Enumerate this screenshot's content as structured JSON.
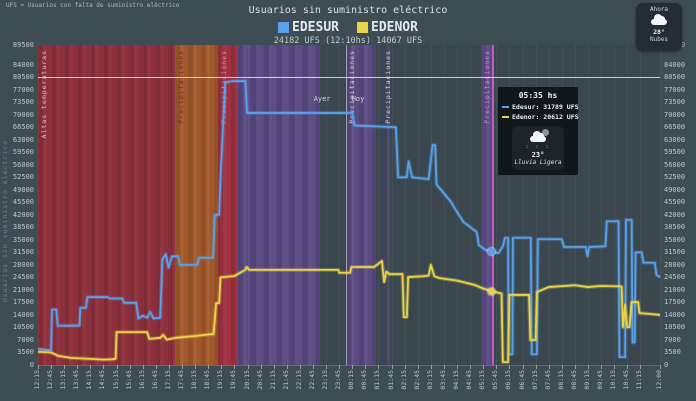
{
  "header": {
    "note": "UFS = Usuarios con falta de suministro eléctrico",
    "title": "Usuarios sin suministro eléctrico",
    "legend": [
      {
        "label": "EDESUR",
        "color": "#5aa0e8"
      },
      {
        "label": "EDENOR",
        "color": "#e8d34a"
      }
    ],
    "subtitle": "24182 UFS (12:10hs) 14067 UFS"
  },
  "now_widget": {
    "label": "Ahora",
    "temp": "28°",
    "condition": "Nubes"
  },
  "tooltip": {
    "time": "05:35 hs",
    "rows": [
      {
        "text": "Edesur: 31789 UFS",
        "color": "#5aa0e8"
      },
      {
        "text": "Edenor: 20612 UFS",
        "color": "#e8d34a"
      }
    ],
    "weather": {
      "temp": "23°",
      "condition": "Lluvia Ligera",
      "rain_glyph": ": : :"
    }
  },
  "axis": {
    "y_title": "Usuarios sin suministro eléctrico",
    "y_ticks": [
      89500,
      84000,
      80500,
      77000,
      73500,
      70000,
      66500,
      63000,
      59500,
      56000,
      52500,
      49000,
      45500,
      42000,
      38500,
      35000,
      31500,
      28000,
      24500,
      21000,
      17500,
      14000,
      10500,
      7000,
      3500,
      0
    ],
    "x_ticks": [
      {
        "m": 0,
        "label": "12:15"
      },
      {
        "m": 30,
        "label": "12:45"
      },
      {
        "m": 60,
        "label": "13:15"
      },
      {
        "m": 90,
        "label": "13:45"
      },
      {
        "m": 120,
        "label": "14:15"
      },
      {
        "m": 150,
        "label": "14:45"
      },
      {
        "m": 180,
        "label": "15:15"
      },
      {
        "m": 210,
        "label": "15:45"
      },
      {
        "m": 240,
        "label": "16:15"
      },
      {
        "m": 270,
        "label": "16:45"
      },
      {
        "m": 300,
        "label": "17:15"
      },
      {
        "m": 330,
        "label": "17:45"
      },
      {
        "m": 360,
        "label": "18:15"
      },
      {
        "m": 390,
        "label": "18:45"
      },
      {
        "m": 420,
        "label": "19:15"
      },
      {
        "m": 450,
        "label": "19:45"
      },
      {
        "m": 480,
        "label": "20:15"
      },
      {
        "m": 510,
        "label": "20:45"
      },
      {
        "m": 540,
        "label": "21:15"
      },
      {
        "m": 570,
        "label": "21:45"
      },
      {
        "m": 600,
        "label": "22:15"
      },
      {
        "m": 630,
        "label": "22:45"
      },
      {
        "m": 660,
        "label": "23:15"
      },
      {
        "m": 690,
        "label": "23:45"
      },
      {
        "m": 720,
        "label": "00:15"
      },
      {
        "m": 750,
        "label": "00:45"
      },
      {
        "m": 780,
        "label": "01:15"
      },
      {
        "m": 810,
        "label": "01:45"
      },
      {
        "m": 840,
        "label": "02:15"
      },
      {
        "m": 870,
        "label": "02:45"
      },
      {
        "m": 900,
        "label": "03:15"
      },
      {
        "m": 930,
        "label": "03:45"
      },
      {
        "m": 960,
        "label": "04:15"
      },
      {
        "m": 990,
        "label": "04:45"
      },
      {
        "m": 1020,
        "label": "05:15"
      },
      {
        "m": 1050,
        "label": "05:45"
      },
      {
        "m": 1080,
        "label": "06:15"
      },
      {
        "m": 1110,
        "label": "06:45"
      },
      {
        "m": 1140,
        "label": "07:15"
      },
      {
        "m": 1170,
        "label": "07:45"
      },
      {
        "m": 1200,
        "label": "08:15"
      },
      {
        "m": 1230,
        "label": "08:45"
      },
      {
        "m": 1260,
        "label": "09:15"
      },
      {
        "m": 1290,
        "label": "09:45"
      },
      {
        "m": 1320,
        "label": "10:15"
      },
      {
        "m": 1350,
        "label": "10:45"
      },
      {
        "m": 1380,
        "label": "11:15"
      },
      {
        "m": 1425,
        "label": "12:00"
      }
    ],
    "day_labels": {
      "left": "Ayer",
      "right": "Hoy",
      "divider_minute": 705
    }
  },
  "bands": [
    {
      "label": "Altas temperaturas",
      "start": 0,
      "end": 315,
      "color": "#8e2f3c",
      "label_color": "#e3bcc3"
    },
    {
      "label": "Precipitaciones",
      "start": 315,
      "end": 412,
      "color": "#a3582b",
      "label_color": "#7c2531"
    },
    {
      "label": "Precipitaciones",
      "start": 412,
      "end": 458,
      "color": "#9e3040",
      "label_color": "#dd93a0"
    },
    {
      "label": "",
      "start": 458,
      "end": 645,
      "color": "#5a4a82",
      "label_color": "#cfd5da"
    },
    {
      "label": "Precipitaciones",
      "start": 705,
      "end": 775,
      "color": "#5a4a82",
      "label_color": "#d3d9dd"
    },
    {
      "label": "Precipitaciones",
      "start": 788,
      "end": 806,
      "color": "rgba(90,74,130,0.38)",
      "label_color": "#d3d9dd"
    },
    {
      "label": "",
      "start": 1015,
      "end": 1040,
      "color": "#5a4a82",
      "label_color": "#d3d9dd"
    }
  ],
  "vlines": [
    {
      "name": "day-divider-line",
      "m": 705,
      "color": "#c2cacf",
      "width": 1,
      "label": "",
      "label_color": ""
    },
    {
      "name": "precipitation-event-line",
      "m": 1040,
      "color": "#c75fc7",
      "width": 2,
      "label": "Precipitaciones",
      "label_color": "#d98ad9"
    }
  ],
  "chart_data": {
    "type": "line",
    "title": "Usuarios sin suministro eléctrico",
    "x_unit": "minutes_since_12:15",
    "x_max_minutes": 1425,
    "y_max": 89500,
    "ylim": [
      0,
      89500
    ],
    "legend_position": "top-center",
    "grid": "faint-vertical",
    "highlight_hline": 80500,
    "series": [
      {
        "name": "EDESUR",
        "color": "#5aa0e8",
        "points": [
          [
            0,
            4500
          ],
          [
            20,
            4200
          ],
          [
            30,
            4200
          ],
          [
            32,
            15500
          ],
          [
            42,
            15500
          ],
          [
            45,
            11000
          ],
          [
            95,
            11000
          ],
          [
            97,
            16000
          ],
          [
            110,
            16000
          ],
          [
            113,
            19000
          ],
          [
            160,
            19000
          ],
          [
            165,
            18600
          ],
          [
            193,
            18600
          ],
          [
            197,
            17400
          ],
          [
            225,
            17400
          ],
          [
            230,
            13000
          ],
          [
            240,
            13800
          ],
          [
            250,
            13200
          ],
          [
            257,
            14800
          ],
          [
            265,
            13000
          ],
          [
            280,
            13200
          ],
          [
            285,
            29500
          ],
          [
            293,
            31000
          ],
          [
            299,
            27200
          ],
          [
            307,
            30400
          ],
          [
            321,
            30400
          ],
          [
            325,
            28000
          ],
          [
            365,
            28000
          ],
          [
            369,
            30000
          ],
          [
            401,
            30000
          ],
          [
            405,
            42000
          ],
          [
            415,
            42000
          ],
          [
            418,
            52000
          ],
          [
            429,
            79000
          ],
          [
            445,
            79400
          ],
          [
            475,
            79400
          ],
          [
            479,
            70500
          ],
          [
            720,
            70500
          ],
          [
            725,
            67000
          ],
          [
            820,
            66500
          ],
          [
            825,
            52500
          ],
          [
            845,
            52500
          ],
          [
            849,
            57000
          ],
          [
            857,
            52500
          ],
          [
            895,
            52000
          ],
          [
            904,
            61500
          ],
          [
            910,
            61500
          ],
          [
            913,
            50500
          ],
          [
            930,
            48000
          ],
          [
            945,
            45800
          ],
          [
            960,
            42800
          ],
          [
            975,
            40000
          ],
          [
            990,
            38600
          ],
          [
            1005,
            37200
          ],
          [
            1010,
            33500
          ],
          [
            1025,
            32200
          ],
          [
            1040,
            31789
          ],
          [
            1055,
            31300
          ],
          [
            1065,
            33200
          ],
          [
            1070,
            35600
          ],
          [
            1077,
            35600
          ],
          [
            1078,
            3000
          ],
          [
            1087,
            3000
          ],
          [
            1088,
            35600
          ],
          [
            1129,
            35600
          ],
          [
            1131,
            3000
          ],
          [
            1143,
            3000
          ],
          [
            1145,
            35200
          ],
          [
            1200,
            35200
          ],
          [
            1205,
            33000
          ],
          [
            1255,
            33000
          ],
          [
            1259,
            30500
          ],
          [
            1263,
            33000
          ],
          [
            1300,
            33200
          ],
          [
            1303,
            40200
          ],
          [
            1330,
            40200
          ],
          [
            1332,
            2200
          ],
          [
            1345,
            2200
          ],
          [
            1347,
            40600
          ],
          [
            1360,
            40600
          ],
          [
            1362,
            6300
          ],
          [
            1367,
            6300
          ],
          [
            1369,
            31500
          ],
          [
            1383,
            31500
          ],
          [
            1387,
            28600
          ],
          [
            1413,
            28600
          ],
          [
            1417,
            25200
          ],
          [
            1425,
            24500
          ]
        ]
      },
      {
        "name": "EDENOR",
        "color": "#e8d34a",
        "points": [
          [
            0,
            3700
          ],
          [
            30,
            3500
          ],
          [
            45,
            2600
          ],
          [
            75,
            2000
          ],
          [
            150,
            1500
          ],
          [
            170,
            1600
          ],
          [
            178,
            1800
          ],
          [
            180,
            9200
          ],
          [
            250,
            9200
          ],
          [
            255,
            7300
          ],
          [
            280,
            7600
          ],
          [
            287,
            8400
          ],
          [
            295,
            7100
          ],
          [
            315,
            7600
          ],
          [
            360,
            8100
          ],
          [
            395,
            8600
          ],
          [
            402,
            8600
          ],
          [
            405,
            12600
          ],
          [
            408,
            17300
          ],
          [
            415,
            17300
          ],
          [
            418,
            24500
          ],
          [
            450,
            24900
          ],
          [
            475,
            26600
          ],
          [
            478,
            27400
          ],
          [
            484,
            26600
          ],
          [
            688,
            26600
          ],
          [
            690,
            25800
          ],
          [
            715,
            25800
          ],
          [
            718,
            27400
          ],
          [
            770,
            27400
          ],
          [
            788,
            29100
          ],
          [
            793,
            23200
          ],
          [
            798,
            26100
          ],
          [
            805,
            25400
          ],
          [
            835,
            25400
          ],
          [
            838,
            13400
          ],
          [
            845,
            13400
          ],
          [
            848,
            24600
          ],
          [
            880,
            24800
          ],
          [
            895,
            25000
          ],
          [
            900,
            28000
          ],
          [
            908,
            24800
          ],
          [
            920,
            24300
          ],
          [
            960,
            23600
          ],
          [
            1000,
            22400
          ],
          [
            1020,
            21400
          ],
          [
            1040,
            20612
          ],
          [
            1062,
            20000
          ],
          [
            1065,
            800
          ],
          [
            1077,
            800
          ],
          [
            1080,
            19600
          ],
          [
            1125,
            19600
          ],
          [
            1128,
            7000
          ],
          [
            1140,
            7000
          ],
          [
            1143,
            20400
          ],
          [
            1170,
            21800
          ],
          [
            1230,
            22300
          ],
          [
            1260,
            21800
          ],
          [
            1290,
            22100
          ],
          [
            1337,
            22000
          ],
          [
            1340,
            10600
          ],
          [
            1345,
            16800
          ],
          [
            1350,
            10600
          ],
          [
            1355,
            10600
          ],
          [
            1360,
            17600
          ],
          [
            1375,
            17600
          ],
          [
            1378,
            14500
          ],
          [
            1400,
            14300
          ],
          [
            1425,
            14000
          ]
        ]
      }
    ],
    "markers": [
      {
        "series": "EDESUR",
        "minute": 1040,
        "value": 31789,
        "color": "#5aa0e8"
      },
      {
        "series": "EDENOR",
        "minute": 1040,
        "value": 20612,
        "color": "#e8d34a"
      }
    ]
  }
}
